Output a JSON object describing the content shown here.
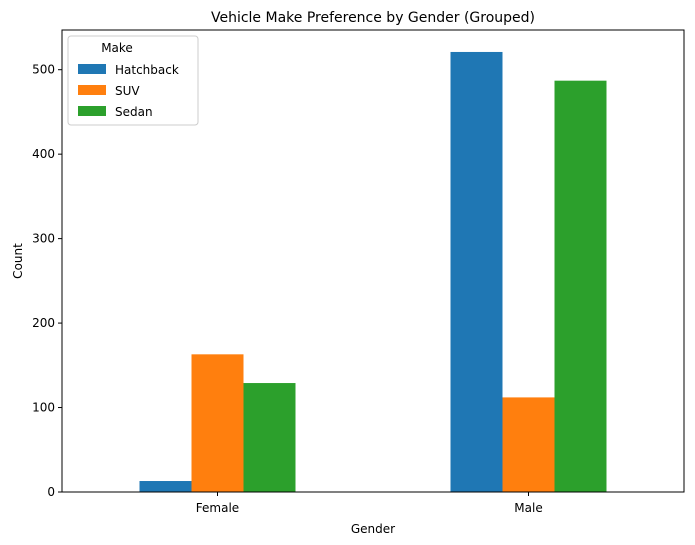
{
  "chart_data": {
    "type": "bar",
    "title": "Vehicle Make Preference by Gender (Grouped)",
    "xlabel": "Gender",
    "ylabel": "Count",
    "categories": [
      "Female",
      "Male"
    ],
    "series": [
      {
        "name": "Hatchback",
        "values": [
          13,
          521
        ],
        "color": "#1f77b4"
      },
      {
        "name": "SUV",
        "values": [
          163,
          112
        ],
        "color": "#ff7f0e"
      },
      {
        "name": "Sedan",
        "values": [
          129,
          487
        ],
        "color": "#2ca02c"
      }
    ],
    "ylim": [
      0,
      547
    ],
    "yticks": [
      "0",
      "100",
      "200",
      "300",
      "400",
      "500"
    ],
    "legend": {
      "title": "Make",
      "position": "top-left"
    },
    "grid": false
  }
}
